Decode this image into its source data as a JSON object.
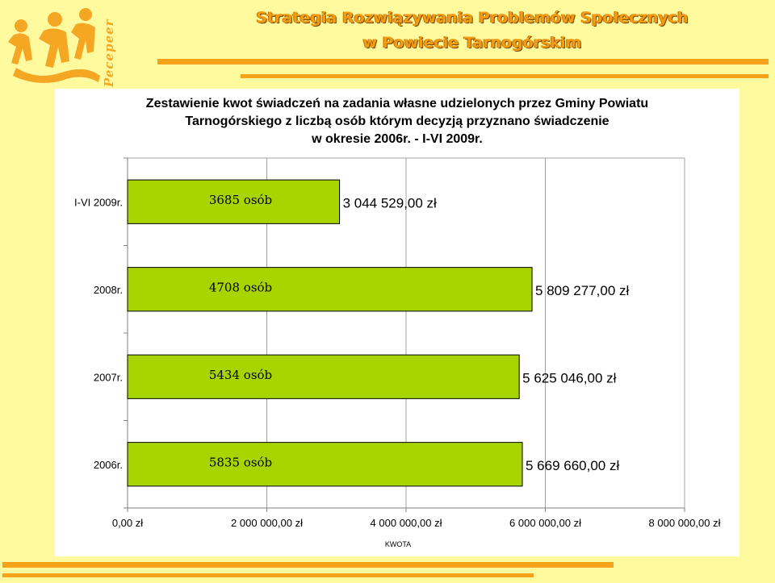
{
  "header": {
    "logo_text": "Pecepeer",
    "title_line1": "Strategia Rozwiązywania Problemów Społecznych",
    "title_line2": "w Powiecie Tarnogórskim"
  },
  "colors": {
    "background": "#fffa9e",
    "accent": "#f7a21b",
    "bar_fill": "#a8d400",
    "bar_stroke": "#000000"
  },
  "chart_data": {
    "type": "bar",
    "orientation": "horizontal",
    "title_lines": [
      "Zestawienie kwot świadczeń na zadania własne udzielonych przez Gminy Powiatu",
      "Tarnogórskiego z liczbą osób którym decyzją przyznano świadczenie",
      "w okresie 2006r. - I-VI 2009r."
    ],
    "xlabel": "KWOTA",
    "ylabel": "",
    "xlim": [
      0,
      8000000
    ],
    "x_ticks": [
      {
        "value": 0,
        "label": "0,00 zł"
      },
      {
        "value": 2000000,
        "label": "2 000 000,00 zł"
      },
      {
        "value": 4000000,
        "label": "4 000 000,00 zł"
      },
      {
        "value": 6000000,
        "label": "6 000 000,00 zł"
      },
      {
        "value": 8000000,
        "label": "8 000 000,00 zł"
      }
    ],
    "grid": true,
    "categories": [
      "I-VI 2009r.",
      "2008r.",
      "2007r.",
      "2006r."
    ],
    "values": [
      3044529.0,
      5809277.0,
      5625046.0,
      5669660.0
    ],
    "value_labels": [
      "3 044 529,00 zł",
      "5 809 277,00 zł",
      "5 625 046,00 zł",
      "5 669 660,00 zł"
    ],
    "persons_labels": [
      "3685 osób",
      "4708 osób",
      "5434 osób",
      "5835 osób"
    ]
  }
}
